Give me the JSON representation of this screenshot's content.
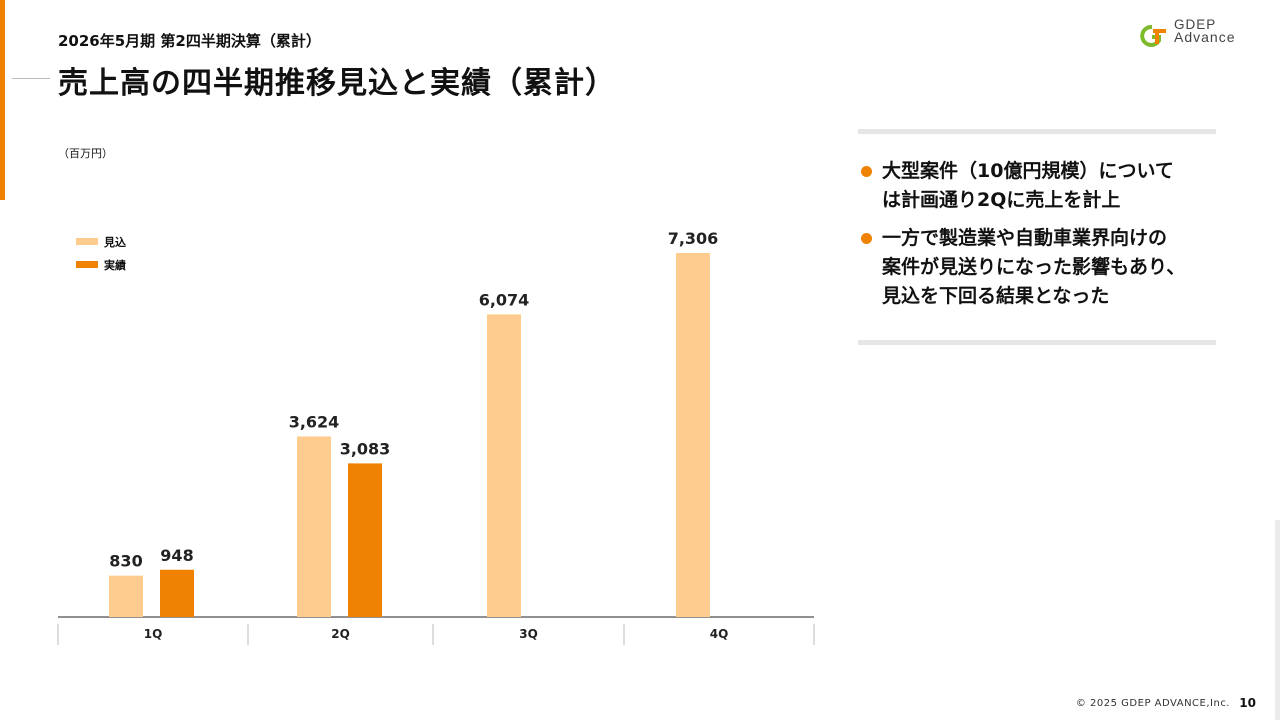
{
  "header": {
    "subtitle": "2026年5月期 第2四半期決算（累計）",
    "title": "売上高の四半期推移見込と実績（累計）"
  },
  "logo": {
    "line1": "GDEP",
    "line2": "Advance"
  },
  "colors": {
    "accent": "#ef8200",
    "forecast": "#ffcc8f",
    "actual": "#ef8200"
  },
  "chart_data": {
    "type": "bar",
    "unit_label": "（百万円）",
    "categories": [
      "1Q",
      "2Q",
      "3Q",
      "4Q"
    ],
    "series": [
      {
        "name": "見込",
        "values": [
          830,
          3624,
          6074,
          7306
        ],
        "labels": [
          "830",
          "3,624",
          "6,074",
          "7,306"
        ]
      },
      {
        "name": "実績",
        "values": [
          948,
          3083,
          null,
          null
        ],
        "labels": [
          "948",
          "3,083",
          "",
          ""
        ]
      }
    ],
    "ylim": [
      0,
      7306
    ],
    "grid": false,
    "legend_position": "top-left"
  },
  "panel": {
    "bullets": [
      "大型案件（10億円規模）について\nは計画通り2Qに売上を計上",
      "一方で製造業や自動車業界向けの\n案件が見送りになった影響もあり、\n見込を下回る結果となった"
    ]
  },
  "footer": {
    "copyright": "© 2025 GDEP ADVANCE,Inc.",
    "page": "10"
  }
}
